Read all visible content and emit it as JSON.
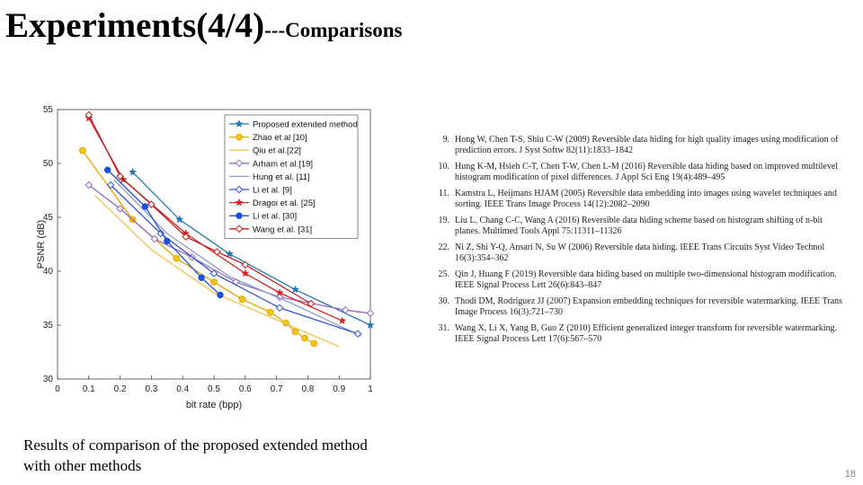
{
  "slide": {
    "title_main": "Experiments(4/4)",
    "title_sub": "---Comparisons",
    "caption_line1": "Results of comparison of the proposed extended method",
    "caption_line2": "with other methods",
    "page_number": "18"
  },
  "references": [
    {
      "num": "9.",
      "text": "Hong W, Chen T-S, Shiu C-W (2009) Reversible data hiding for high quality images using modification of prediction errors. J Syst Softw 82(11):1833–1842"
    },
    {
      "num": "10.",
      "text": "Hung K-M, Hsieh C-T, Chen T-W, Chen L-M (2016) Reversible data hiding based on improved multilevel histogram modification of pixel differences. J Appl Sci Eng 19(4):489–495"
    },
    {
      "num": "11.",
      "text": "Kamstra L, Heijmans HJAM (2005) Reversible data embedding into images using wavelet techniques and sorting. IEEE Trans Image Process 14(12):2082–2090"
    },
    {
      "num": "19.",
      "text": "Liu L, Chang C-C, Wang A (2016) Reversible data hiding scheme based on histogram shifting of n-bit planes. Multimed Tools Appl 75:11311–11326"
    },
    {
      "num": "22.",
      "text": "Ni Z, Shi Y-Q, Ansari N, Su W (2006) Reversible data hiding. IEEE Trans Circuits Syst Video Technol 16(3):354–362"
    },
    {
      "num": "25.",
      "text": "Qin J, Huang F (2019) Reversible data hiding based on multiple two-dimensional histogram modification. IEEE Signal Process Lett 26(6):843–847"
    },
    {
      "num": "30.",
      "text": "Thodi DM, Rodriguez JJ (2007) Expansion embedding techniques for reversible watermarking. IEEE Trans Image Process 16(3):721–730"
    },
    {
      "num": "31.",
      "text": "Wang X, Li X, Yang B, Guo Z (2010) Efficient generalized integer transform for reversible watermarking. IEEE Signal Process Lett 17(6):567–570"
    }
  ],
  "chart_data": {
    "type": "line",
    "xlabel": "bit rate (bpp)",
    "ylabel": "PSNR (dB)",
    "xlim": [
      0,
      1
    ],
    "ylim": [
      30,
      55
    ],
    "xticks": [
      "0",
      "0.1",
      "0.2",
      "0.3",
      "0.4",
      "0.5",
      "0.6",
      "0.7",
      "0.8",
      "0.9",
      "1"
    ],
    "yticks": [
      "30",
      "35",
      "40",
      "45",
      "50",
      "55"
    ],
    "legend_position": "top-right",
    "grid": false,
    "series": [
      {
        "name": "Proposed extended method",
        "color": "#1f77b4",
        "marker": "star",
        "x": [
          0.24,
          0.39,
          0.55,
          0.76,
          1.0
        ],
        "y": [
          49.2,
          44.8,
          41.6,
          38.3,
          35.0
        ]
      },
      {
        "name": "Zhao et al [10]",
        "color": "#e8a400",
        "marker": "circle",
        "x": [
          0.08,
          0.24,
          0.38,
          0.5,
          0.59,
          0.68,
          0.73,
          0.76,
          0.79,
          0.82
        ],
        "y": [
          51.2,
          44.8,
          41.2,
          39.0,
          37.4,
          36.2,
          35.2,
          34.4,
          33.8,
          33.3
        ]
      },
      {
        "name": "Qiu et al.[22]",
        "color": "#f2c14e",
        "marker": "none",
        "x": [
          0.12,
          0.3,
          0.5,
          0.7,
          0.9
        ],
        "y": [
          47.0,
          42.0,
          38.0,
          35.5,
          33.0
        ]
      },
      {
        "name": "Arham et al.[19]",
        "color": "#9467bd",
        "marker": "diamond",
        "x": [
          0.1,
          0.2,
          0.31,
          0.43,
          0.57,
          0.71,
          0.92,
          1.0
        ],
        "y": [
          48.0,
          45.8,
          43.0,
          41.3,
          39.0,
          37.6,
          36.4,
          36.1
        ]
      },
      {
        "name": "Hung et al. [11]",
        "color": "#8c9bd1",
        "marker": "none",
        "x": [
          0.18,
          0.35,
          0.55,
          0.75,
          0.97
        ],
        "y": [
          48.5,
          43.5,
          39.5,
          37.0,
          34.0
        ]
      },
      {
        "name": "Li et al. [9]",
        "color": "#3355cc",
        "marker": "diamond",
        "x": [
          0.17,
          0.33,
          0.5,
          0.71,
          0.96
        ],
        "y": [
          48.0,
          43.5,
          39.8,
          36.6,
          34.2
        ]
      },
      {
        "name": "Dragoi et al. [25]",
        "color": "#d62728",
        "marker": "star",
        "x": [
          0.1,
          0.21,
          0.41,
          0.6,
          0.71,
          0.91
        ],
        "y": [
          54.2,
          48.5,
          43.5,
          39.8,
          38.0,
          35.4
        ]
      },
      {
        "name": "Li et al. [30]",
        "color": "#1a4fd6",
        "marker": "dot",
        "x": [
          0.16,
          0.28,
          0.35,
          0.46,
          0.52
        ],
        "y": [
          49.4,
          46.0,
          42.8,
          39.4,
          37.8
        ]
      },
      {
        "name": "Wang et al. [31]",
        "color": "#c21c1c",
        "marker": "diamond",
        "x": [
          0.1,
          0.2,
          0.3,
          0.41,
          0.51,
          0.6,
          0.81
        ],
        "y": [
          54.5,
          48.8,
          46.2,
          43.2,
          41.8,
          40.6,
          37.0
        ]
      }
    ]
  }
}
